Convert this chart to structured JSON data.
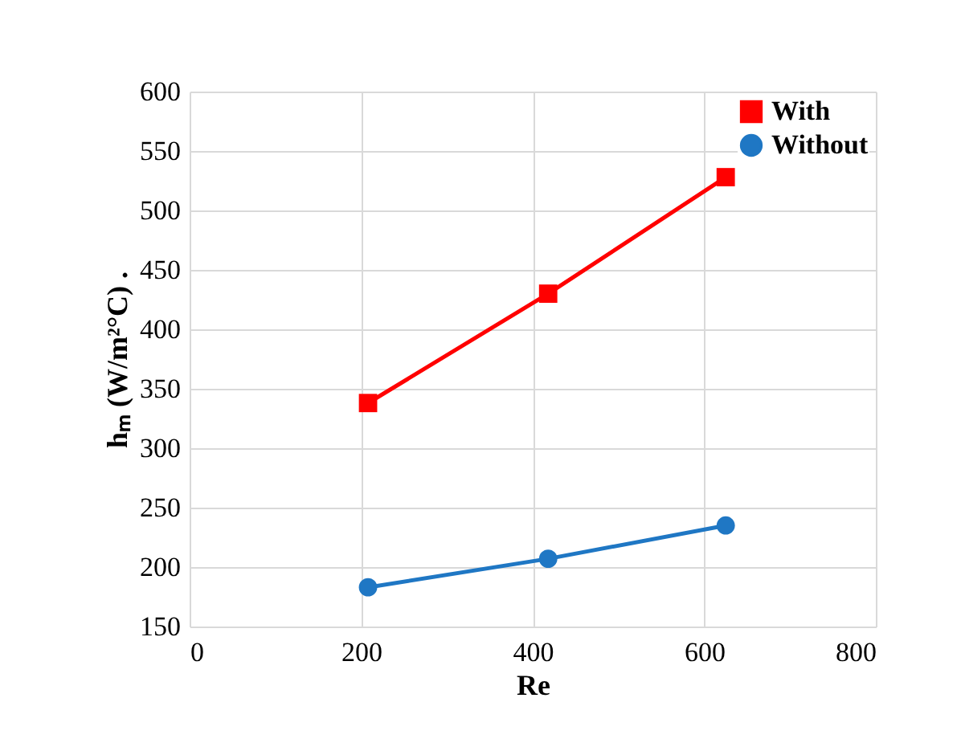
{
  "chart_data": {
    "type": "line",
    "xlabel": "Re",
    "ylabel": "hₘ (W/m²°C) .",
    "x": [
      208,
      418,
      625
    ],
    "series": [
      {
        "name": "With",
        "color": "#ff0000",
        "marker": "square",
        "values": [
          338,
          430,
          528
        ]
      },
      {
        "name": "Without",
        "color": "#1f77c4",
        "marker": "circle",
        "values": [
          183,
          207,
          235
        ]
      }
    ],
    "xlim": [
      0,
      800
    ],
    "xticks": [
      0,
      200,
      400,
      600,
      800
    ],
    "ylim": [
      150,
      600
    ],
    "yticks": [
      150,
      200,
      250,
      300,
      350,
      400,
      450,
      500,
      550,
      600
    ],
    "grid": true,
    "legend": "top right",
    "line_style": "solid"
  }
}
